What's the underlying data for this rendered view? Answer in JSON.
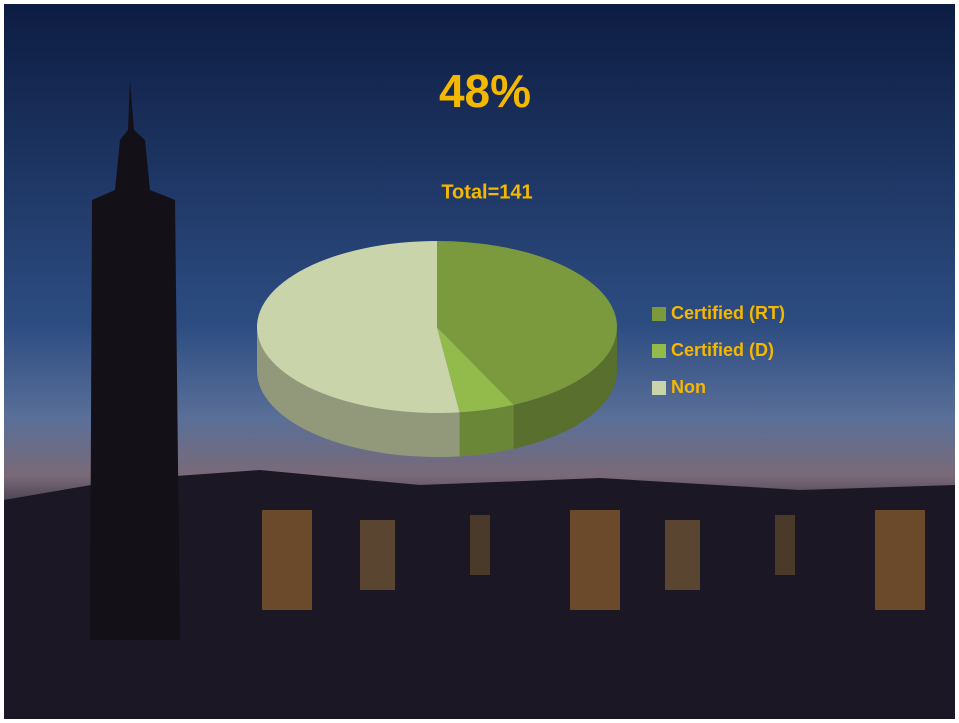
{
  "chart_data": {
    "type": "pie",
    "annotation": "48%",
    "title": "Total=141",
    "categories": [
      "Certified (RT)",
      "Certified (D)",
      "Non"
    ],
    "values": [
      43,
      5,
      52
    ],
    "colors": [
      "#7b9a3e",
      "#93bb4c",
      "#c9d4aa"
    ],
    "legend": "right"
  }
}
